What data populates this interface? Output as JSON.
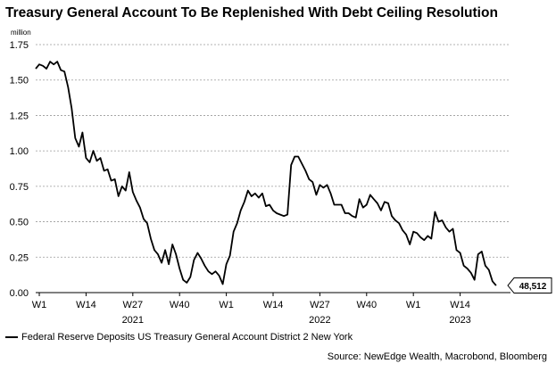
{
  "chart_data": {
    "type": "line",
    "title": "Treasury General Account To Be Replenished With Debt Ceiling Resolution",
    "ylabel": "million",
    "source": "Source: NewEdge Wealth, Macrobond, Bloomberg",
    "ylim": [
      0,
      1.75
    ],
    "yticks": [
      "0.00",
      "0.25",
      "0.50",
      "0.75",
      "1.00",
      "1.25",
      "1.50",
      "1.75"
    ],
    "xlim": [
      0,
      132
    ],
    "xticks": [
      {
        "week": 1,
        "label": "W1"
      },
      {
        "week": 14,
        "label": "W14"
      },
      {
        "week": 27,
        "label": "W27"
      },
      {
        "week": 40,
        "label": "W40"
      },
      {
        "week": 53,
        "label": "W1"
      },
      {
        "week": 66,
        "label": "W14"
      },
      {
        "week": 79,
        "label": "W27"
      },
      {
        "week": 92,
        "label": "W40"
      },
      {
        "week": 105,
        "label": "W1"
      },
      {
        "week": 118,
        "label": "W14"
      }
    ],
    "year_labels": [
      {
        "week": 27,
        "label": "2021"
      },
      {
        "week": 79,
        "label": "2022"
      },
      {
        "week": 118,
        "label": "2023"
      }
    ],
    "grid": true,
    "line_color": "#000000",
    "last_value_label": "48,512",
    "series": [
      {
        "name": "Federal Reserve Deposits US Treasury General Account District 2 New York",
        "x": [
          0,
          1,
          2,
          3,
          4,
          5,
          6,
          7,
          8,
          9,
          10,
          11,
          12,
          13,
          14,
          15,
          16,
          17,
          18,
          19,
          20,
          21,
          22,
          23,
          24,
          25,
          26,
          27,
          28,
          29,
          30,
          31,
          32,
          33,
          34,
          35,
          36,
          37,
          38,
          39,
          40,
          41,
          42,
          43,
          44,
          45,
          46,
          47,
          48,
          49,
          50,
          51,
          52,
          53,
          54,
          55,
          56,
          57,
          58,
          59,
          60,
          61,
          62,
          63,
          64,
          65,
          66,
          67,
          68,
          69,
          70,
          71,
          72,
          73,
          74,
          75,
          76,
          77,
          78,
          79,
          80,
          81,
          82,
          83,
          84,
          85,
          86,
          87,
          88,
          89,
          90,
          91,
          92,
          93,
          94,
          95,
          96,
          97,
          98,
          99,
          100,
          101,
          102,
          103,
          104,
          105,
          106,
          107,
          108,
          109,
          110,
          111,
          112,
          113,
          114,
          115,
          116,
          117,
          118,
          119,
          120,
          121,
          122,
          123,
          124,
          125,
          126,
          127,
          128
        ],
        "values": [
          1.58,
          1.61,
          1.6,
          1.58,
          1.63,
          1.61,
          1.63,
          1.57,
          1.56,
          1.45,
          1.3,
          1.09,
          1.03,
          1.13,
          0.95,
          0.92,
          1.0,
          0.93,
          0.95,
          0.86,
          0.87,
          0.79,
          0.8,
          0.68,
          0.75,
          0.72,
          0.85,
          0.71,
          0.65,
          0.6,
          0.52,
          0.49,
          0.38,
          0.3,
          0.27,
          0.21,
          0.3,
          0.2,
          0.34,
          0.27,
          0.17,
          0.09,
          0.07,
          0.11,
          0.23,
          0.28,
          0.24,
          0.19,
          0.15,
          0.13,
          0.15,
          0.12,
          0.06,
          0.2,
          0.26,
          0.43,
          0.49,
          0.58,
          0.64,
          0.72,
          0.68,
          0.7,
          0.67,
          0.7,
          0.61,
          0.62,
          0.58,
          0.56,
          0.55,
          0.54,
          0.55,
          0.9,
          0.96,
          0.96,
          0.91,
          0.86,
          0.8,
          0.78,
          0.69,
          0.76,
          0.74,
          0.76,
          0.7,
          0.62,
          0.62,
          0.62,
          0.56,
          0.56,
          0.54,
          0.53,
          0.66,
          0.6,
          0.62,
          0.69,
          0.66,
          0.63,
          0.58,
          0.64,
          0.63,
          0.54,
          0.51,
          0.49,
          0.44,
          0.41,
          0.34,
          0.43,
          0.42,
          0.39,
          0.37,
          0.4,
          0.38,
          0.57,
          0.5,
          0.51,
          0.46,
          0.43,
          0.45,
          0.3,
          0.28,
          0.19,
          0.17,
          0.14,
          0.09,
          0.27,
          0.29,
          0.19,
          0.16,
          0.08,
          0.05
        ]
      }
    ]
  }
}
